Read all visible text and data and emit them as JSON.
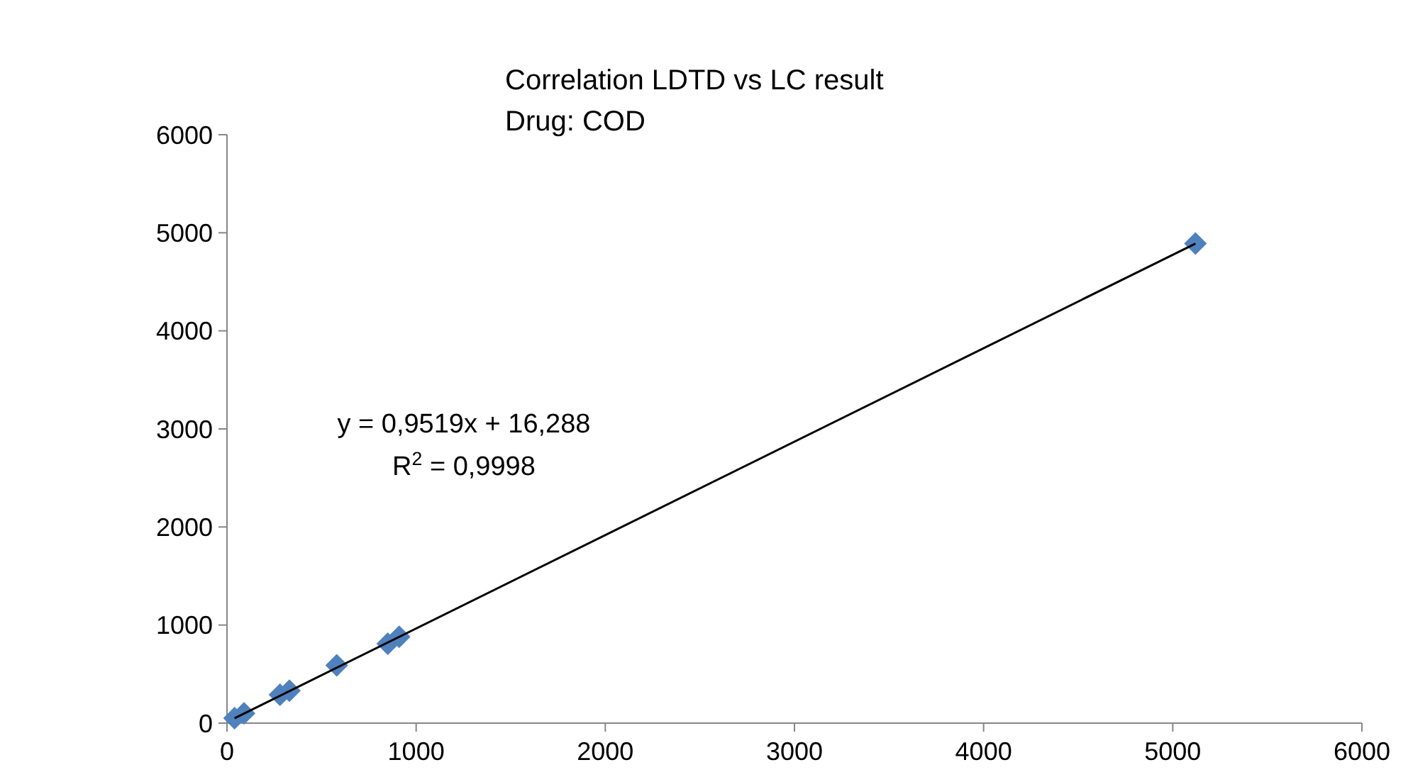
{
  "chart_data": {
    "type": "scatter",
    "title": "Correlation LDTD vs LC result",
    "subtitle": "Drug: COD",
    "x": [
      40,
      90,
      280,
      330,
      580,
      850,
      910,
      5120
    ],
    "series": [
      {
        "color": "#4f81bd",
        "marker": "diamond",
        "values": [
          50,
          100,
          290,
          330,
          590,
          810,
          880,
          4890
        ]
      },
      {
        "type": "line",
        "color": "#000000",
        "marker": "none",
        "x": [
          40,
          5120
        ],
        "values": [
          50,
          4890
        ]
      }
    ],
    "xlim": [
      0,
      6000
    ],
    "xticks": [
      0,
      1000,
      2000,
      3000,
      4000,
      5000,
      6000
    ],
    "ylim": [
      0,
      6000
    ],
    "yticks": [
      0,
      1000,
      2000,
      3000,
      4000,
      5000,
      6000
    ],
    "annotations": [
      "y = 0,9519x + 16,288",
      "R$^{2}$ = 0,9998"
    ],
    "grid": false
  }
}
